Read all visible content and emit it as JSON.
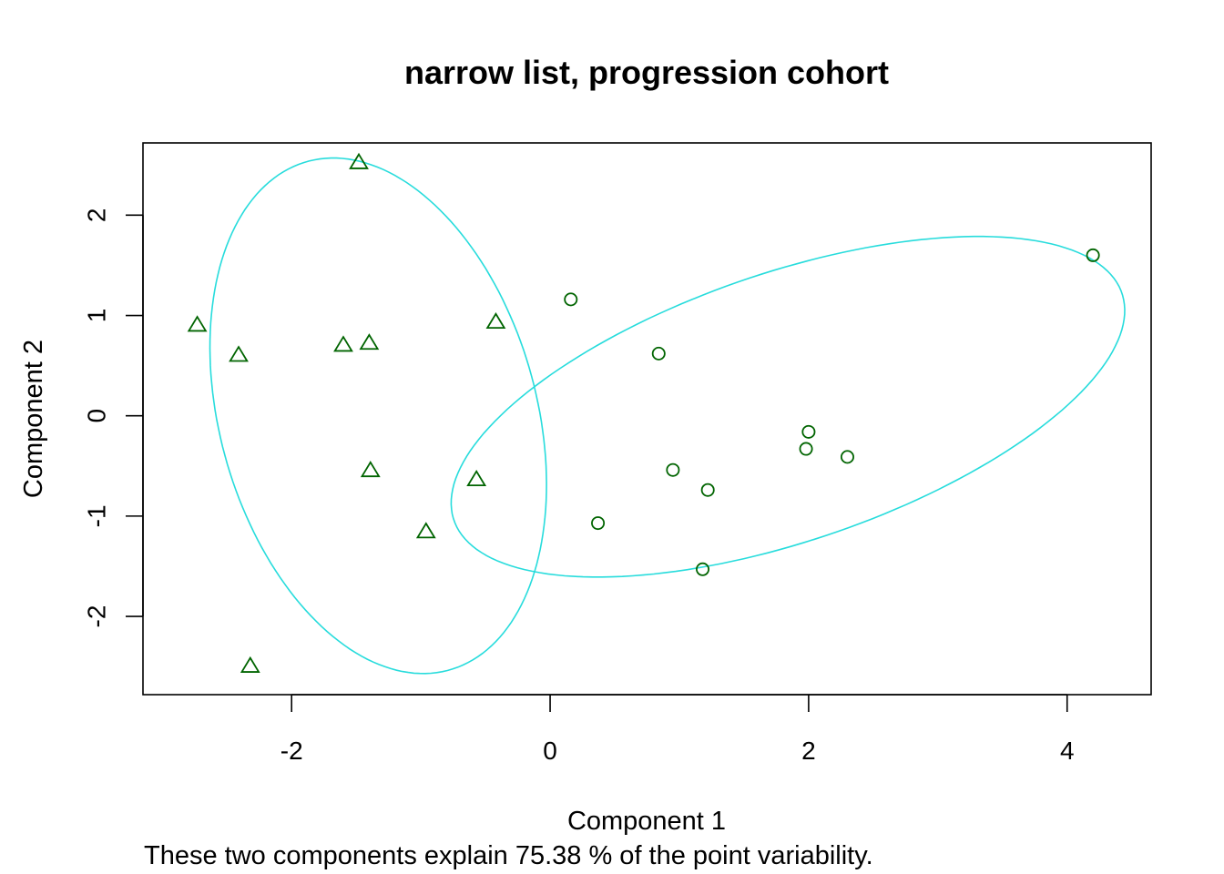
{
  "chart_data": {
    "type": "scatter",
    "title": "narrow list, progression cohort",
    "xlabel": "Component 1",
    "ylabel": "Component 2",
    "subtitle": "These two components explain 75.38 % of the point variability.",
    "xlim": [
      -3.15,
      4.65
    ],
    "ylim": [
      -2.78,
      2.72
    ],
    "xticks": [
      -2,
      0,
      2,
      4
    ],
    "yticks": [
      -2,
      -1,
      0,
      1,
      2
    ],
    "grid": false,
    "colors": {
      "points": "#006400",
      "ellipse": "#27dcdc",
      "frame": "#000000"
    },
    "clusters": [
      {
        "marker": "triangle",
        "points": [
          [
            -1.48,
            2.52
          ],
          [
            -2.73,
            0.9
          ],
          [
            -2.41,
            0.6
          ],
          [
            -1.6,
            0.7
          ],
          [
            -1.4,
            0.72
          ],
          [
            -0.42,
            0.93
          ],
          [
            -1.39,
            -0.55
          ],
          [
            -0.96,
            -1.16
          ],
          [
            -0.57,
            -0.64
          ],
          [
            -2.32,
            -2.5
          ]
        ],
        "ellipse": {
          "center": [
            -1.33,
            0.0
          ],
          "rx": 1.24,
          "ry": 2.6,
          "angle": 10
        }
      },
      {
        "marker": "circle",
        "points": [
          [
            0.16,
            1.16
          ],
          [
            4.2,
            1.6
          ],
          [
            0.84,
            0.62
          ],
          [
            2.0,
            -0.16
          ],
          [
            1.98,
            -0.33
          ],
          [
            2.3,
            -0.41
          ],
          [
            0.95,
            -0.54
          ],
          [
            1.22,
            -0.74
          ],
          [
            0.37,
            -1.07
          ],
          [
            1.18,
            -1.53
          ]
        ],
        "ellipse": {
          "center": [
            1.84,
            0.09
          ],
          "rx": 2.83,
          "ry": 1.29,
          "angle": 26
        }
      }
    ]
  }
}
